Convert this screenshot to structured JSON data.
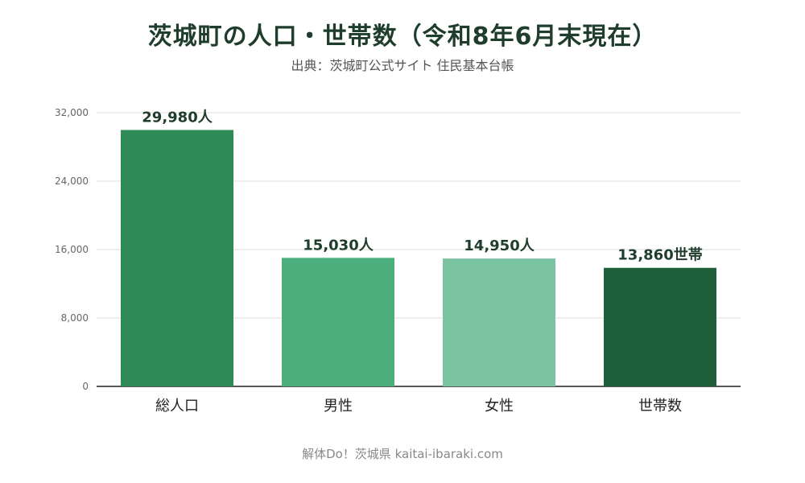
{
  "title": "茨城町の人口・世帯数（令和8年6月末現在）",
  "subtitle": "出典：茨城町公式サイト 住民基本台帳",
  "footer": "解体Do！茨城県 kaitai-ibaraki.com",
  "colors": {
    "grid": "#dddddd",
    "axis": "#222222",
    "tick_label": "#666666",
    "category_label": "#222222",
    "data_label": "#1f3d2c"
  },
  "chart_data": {
    "type": "bar",
    "categories": [
      "総人口",
      "男性",
      "女性",
      "世帯数"
    ],
    "values": [
      29980,
      15030,
      14950,
      13860
    ],
    "data_labels": [
      "29,980人",
      "15,030人",
      "14,950人",
      "13,860世帯"
    ],
    "bar_colors": [
      "#2e8b57",
      "#4caf7d",
      "#7bc4a1",
      "#1e5e3a"
    ],
    "ylim": [
      0,
      32000
    ],
    "yticks": [
      0,
      8000,
      16000,
      24000,
      32000
    ],
    "ytick_labels": [
      "0",
      "8,000",
      "16,000",
      "24,000",
      "32,000"
    ],
    "grid": true,
    "legend": "none"
  }
}
